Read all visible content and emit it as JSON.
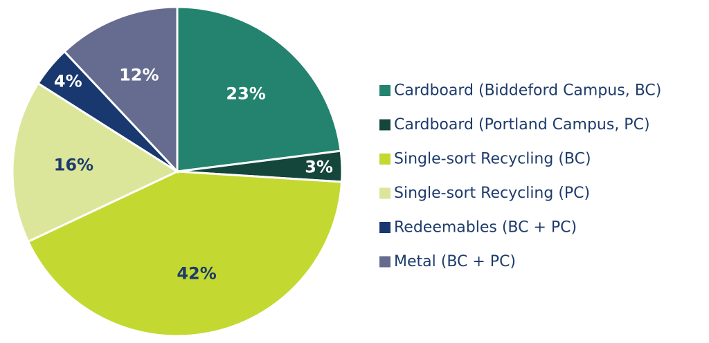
{
  "chart_data": {
    "type": "pie",
    "title": "",
    "start_angle_deg": 0,
    "direction": "clockwise",
    "legend_position": "right",
    "series": [
      {
        "name": "Cardboard (Biddeford Campus, BC)",
        "value": 23,
        "label": "23%",
        "color": "#23836f",
        "label_color": "#ffffff"
      },
      {
        "name": "Cardboard (Portland Campus, PC)",
        "value": 3,
        "label": "3%",
        "color": "#15463b",
        "label_color": "#ffffff"
      },
      {
        "name": "Single-sort Recycling (BC)",
        "value": 42,
        "label": "42%",
        "color": "#c3d931",
        "label_color": "#1d3b6b"
      },
      {
        "name": "Single-sort Recycling (PC)",
        "value": 16,
        "label": "16%",
        "color": "#dce69b",
        "label_color": "#1d3b6b"
      },
      {
        "name": "Redeemables (BC + PC)",
        "value": 4,
        "label": "4%",
        "color": "#18386f",
        "label_color": "#ffffff"
      },
      {
        "name": "Metal (BC + PC)",
        "value": 12,
        "label": "12%",
        "color": "#666c8f",
        "label_color": "#ffffff"
      }
    ]
  }
}
